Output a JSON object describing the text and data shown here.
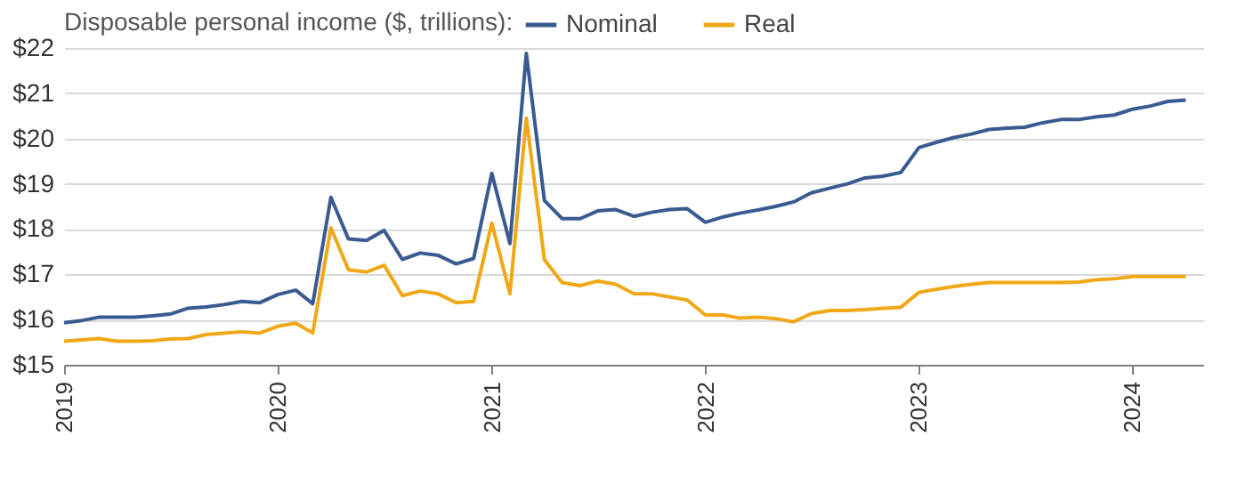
{
  "chart_data": {
    "type": "line",
    "legend_title": "Disposable personal income ($, trillions):",
    "legend": "top",
    "grid": "y",
    "line_style": "solid",
    "x": [
      "2019-01",
      "2019-02",
      "2019-03",
      "2019-04",
      "2019-05",
      "2019-06",
      "2019-07",
      "2019-08",
      "2019-09",
      "2019-10",
      "2019-11",
      "2019-12",
      "2020-01",
      "2020-02",
      "2020-03",
      "2020-04",
      "2020-05",
      "2020-06",
      "2020-07",
      "2020-08",
      "2020-09",
      "2020-10",
      "2020-11",
      "2020-12",
      "2021-01",
      "2021-02",
      "2021-03",
      "2021-04",
      "2021-05",
      "2021-06",
      "2021-07",
      "2021-08",
      "2021-09",
      "2021-10",
      "2021-11",
      "2021-12",
      "2022-01",
      "2022-02",
      "2022-03",
      "2022-04",
      "2022-05",
      "2022-06",
      "2022-07",
      "2022-08",
      "2022-09",
      "2022-10",
      "2022-11",
      "2022-12",
      "2023-01",
      "2023-02",
      "2023-03",
      "2023-04",
      "2023-05",
      "2023-06",
      "2023-07",
      "2023-08",
      "2023-09",
      "2023-10",
      "2023-11",
      "2023-12",
      "2024-01",
      "2024-02",
      "2024-03",
      "2024-04"
    ],
    "series": [
      {
        "name": "Nominal",
        "color": "#3a5a92",
        "values": [
          15.93,
          15.98,
          16.05,
          16.05,
          16.05,
          16.08,
          16.12,
          16.25,
          16.28,
          16.33,
          16.4,
          16.37,
          16.55,
          16.65,
          16.35,
          18.7,
          17.78,
          17.75,
          17.97,
          17.33,
          17.47,
          17.42,
          17.23,
          17.35,
          19.23,
          17.68,
          21.88,
          18.63,
          18.23,
          18.23,
          18.4,
          18.43,
          18.28,
          18.37,
          18.43,
          18.45,
          18.15,
          18.27,
          18.35,
          18.42,
          18.5,
          18.6,
          18.8,
          18.9,
          19.0,
          19.13,
          19.17,
          19.25,
          19.8,
          19.92,
          20.02,
          20.1,
          20.2,
          20.23,
          20.25,
          20.35,
          20.42,
          20.42,
          20.48,
          20.52,
          20.65,
          20.72,
          20.82,
          20.85
        ]
      },
      {
        "name": "Real",
        "color": "#f0a818",
        "values": [
          15.52,
          15.55,
          15.58,
          15.52,
          15.52,
          15.53,
          15.57,
          15.58,
          15.67,
          15.7,
          15.73,
          15.7,
          15.85,
          15.92,
          15.7,
          18.03,
          17.1,
          17.05,
          17.2,
          16.53,
          16.63,
          16.57,
          16.37,
          16.4,
          18.13,
          16.57,
          20.45,
          17.32,
          16.82,
          16.75,
          16.85,
          16.78,
          16.57,
          16.57,
          16.5,
          16.43,
          16.1,
          16.1,
          16.03,
          16.05,
          16.02,
          15.95,
          16.13,
          16.2,
          16.2,
          16.22,
          16.25,
          16.27,
          16.6,
          16.67,
          16.73,
          16.78,
          16.82,
          16.82,
          16.82,
          16.82,
          16.82,
          16.83,
          16.88,
          16.9,
          16.95,
          16.95,
          16.95,
          16.95
        ]
      }
    ],
    "xlim": [
      "2019-01",
      "2024-05"
    ],
    "xticks": [
      "2019",
      "2020",
      "2021",
      "2022",
      "2023",
      "2024"
    ],
    "ylim": [
      15,
      22
    ],
    "yticks": [
      {
        "value": 15,
        "label": "$15"
      },
      {
        "value": 16,
        "label": "$16"
      },
      {
        "value": 17,
        "label": "$17"
      },
      {
        "value": 18,
        "label": "$18"
      },
      {
        "value": 19,
        "label": "$19"
      },
      {
        "value": 20,
        "label": "$20"
      },
      {
        "value": 21,
        "label": "$21"
      },
      {
        "value": 22,
        "label": "$22"
      }
    ]
  }
}
